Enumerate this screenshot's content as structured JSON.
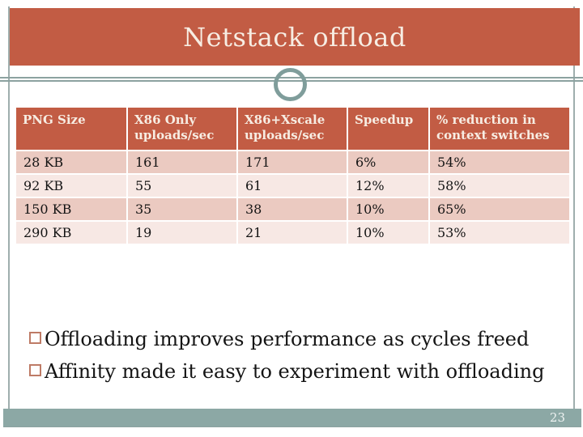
{
  "slide": {
    "title": "Netstack offload",
    "table": {
      "headers": [
        "PNG Size",
        "X86 Only uploads/sec",
        "X86+Xscale uploads/sec",
        "Speedup",
        "% reduction in context switches"
      ],
      "rows": [
        [
          "28 KB",
          "161",
          "171",
          "6%",
          "54%"
        ],
        [
          "92 KB",
          "55",
          "61",
          "12%",
          "58%"
        ],
        [
          "150 KB",
          "35",
          "38",
          "10%",
          "65%"
        ],
        [
          "290 KB",
          "19",
          "21",
          "10%",
          "53%"
        ]
      ]
    },
    "bullets": [
      "Offloading improves performance as cycles freed",
      "Affinity made it easy to experiment with offloading"
    ],
    "footer": {
      "page_number": "23"
    }
  },
  "colors": {
    "banner": "#C25C44",
    "header_text": "#F7EDE3",
    "row_dark": "#EBCAC1",
    "row_light": "#F7E8E4",
    "ring_teal": "#7F9D9B",
    "divider": "#8CA2A0",
    "footer_bar": "#8CA8A5",
    "frame_line": "#9FAEAD",
    "bullet_border": "#BE7B66",
    "body_text": "#141414"
  },
  "chart_data": {
    "type": "table",
    "title": "Netstack offload",
    "columns": [
      "PNG Size",
      "X86 Only uploads/sec",
      "X86+Xscale uploads/sec",
      "Speedup",
      "% reduction in context switches"
    ],
    "rows": [
      {
        "png_size": "28 KB",
        "x86_only_uploads_per_sec": 161,
        "x86_xscale_uploads_per_sec": 171,
        "speedup": "6%",
        "reduction_context_switches": "54%"
      },
      {
        "png_size": "92 KB",
        "x86_only_uploads_per_sec": 55,
        "x86_xscale_uploads_per_sec": 61,
        "speedup": "12%",
        "reduction_context_switches": "58%"
      },
      {
        "png_size": "150 KB",
        "x86_only_uploads_per_sec": 35,
        "x86_xscale_uploads_per_sec": 38,
        "speedup": "10%",
        "reduction_context_switches": "65%"
      },
      {
        "png_size": "290 KB",
        "x86_only_uploads_per_sec": 19,
        "x86_xscale_uploads_per_sec": 21,
        "speedup": "10%",
        "reduction_context_switches": "53%"
      }
    ]
  }
}
